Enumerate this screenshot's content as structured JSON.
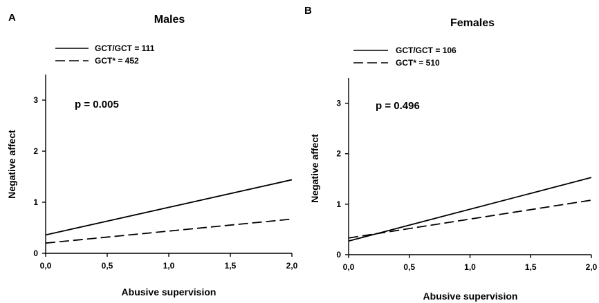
{
  "chart_data": [
    {
      "type": "line",
      "panel_letter": "A",
      "title": "Males",
      "xlabel": "Abusive supervision",
      "ylabel": "Negative affect",
      "xlim": [
        0,
        2
      ],
      "ylim": [
        0,
        3.5
      ],
      "xticks": [
        0,
        0.5,
        1,
        1.5,
        2
      ],
      "xtick_labels": [
        "0,0",
        "0,5",
        "1,0",
        "1,5",
        "2,0"
      ],
      "yticks": [
        0,
        1,
        2,
        3
      ],
      "ytick_labels": [
        "0",
        "1",
        "2",
        "3"
      ],
      "annotation": "p = 0.005",
      "legend_position": "top-left",
      "series": [
        {
          "name": "GCT/GCT = 111",
          "style": "solid",
          "x": [
            0,
            2
          ],
          "y": [
            0.36,
            1.44
          ]
        },
        {
          "name": "GCT* = 452",
          "style": "dashed",
          "x": [
            0,
            2
          ],
          "y": [
            0.2,
            0.67
          ]
        }
      ]
    },
    {
      "type": "line",
      "panel_letter": "B",
      "title": "Females",
      "xlabel": "Abusive supervision",
      "ylabel": "Negative affect",
      "xlim": [
        0,
        2
      ],
      "ylim": [
        0,
        3.5
      ],
      "xticks": [
        0,
        0.5,
        1,
        1.5,
        2
      ],
      "xtick_labels": [
        "0,0",
        "0,5",
        "1,0",
        "1,5",
        "2,0"
      ],
      "yticks": [
        0,
        1,
        2,
        3
      ],
      "ytick_labels": [
        "0",
        "1",
        "2",
        "3"
      ],
      "annotation": "p = 0.496",
      "legend_position": "top-left",
      "series": [
        {
          "name": "GCT/GCT = 106",
          "style": "solid",
          "x": [
            0,
            2
          ],
          "y": [
            0.27,
            1.53
          ]
        },
        {
          "name": "GCT* = 510",
          "style": "dashed",
          "x": [
            0,
            2
          ],
          "y": [
            0.33,
            1.08
          ]
        }
      ]
    }
  ]
}
